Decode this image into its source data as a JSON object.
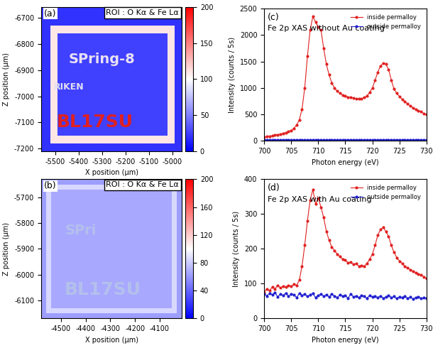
{
  "chart_data": [
    {
      "type": "heatmap",
      "panel": "(a)",
      "roi_label": "ROI : O Kα & Fe Lα",
      "xlabel": "X position (µm)",
      "ylabel": "Z position (µm)",
      "xlim": [
        -5560,
        -4960
      ],
      "xticks": [
        -5500,
        -5400,
        -5300,
        -5200,
        -5100,
        -5000
      ],
      "ylim": [
        -7210,
        -6660
      ],
      "yticks": [
        -7200,
        -7100,
        -7000,
        -6900,
        -6800,
        -6700
      ],
      "x_edges": [
        -5560,
        -5520,
        -5490,
        -5020,
        -4990,
        -4960
      ],
      "z_edges": [
        -7210,
        -7180,
        -7150,
        -6760,
        -6730,
        -6660
      ],
      "cells": [
        [
          20,
          20,
          20,
          20,
          20
        ],
        [
          20,
          110,
          110,
          110,
          20
        ],
        [
          20,
          110,
          25,
          110,
          20
        ],
        [
          20,
          110,
          110,
          110,
          20
        ],
        [
          20,
          20,
          20,
          20,
          20
        ]
      ],
      "color_range": [
        0,
        200
      ],
      "color_ticks": [
        0,
        50,
        100,
        150,
        200
      ],
      "annotations": [
        {
          "text": "SPring-8",
          "x": -5300,
          "y": -6860,
          "color": "#e8e0f4",
          "size": 14
        },
        {
          "text": "RIKEN",
          "x": -5440,
          "y": -6965,
          "color": "#e0e0f4",
          "size": 9
        },
        {
          "text": "BL17SU",
          "x": -5330,
          "y": -7100,
          "color": "#e02020",
          "size": 18
        }
      ]
    },
    {
      "type": "heatmap",
      "panel": "(b)",
      "roi_label": "ROI : O Kα & Fe Lα",
      "xlabel": "X position (µm)",
      "ylabel": "Z position (µm)",
      "xlim": [
        -4580,
        -4010
      ],
      "xticks": [
        -4500,
        -4400,
        -4300,
        -4200,
        -4100
      ],
      "ylim": [
        -6170,
        -5630
      ],
      "yticks": [
        -6100,
        -6000,
        -5900,
        -5800,
        -5700
      ],
      "x_edges": [
        -4580,
        -4560,
        -4540,
        -4050,
        -4030,
        -4010
      ],
      "z_edges": [
        -6170,
        -6150,
        -6130,
        -5670,
        -5650,
        -5630
      ],
      "cells": [
        [
          62,
          62,
          62,
          62,
          62
        ],
        [
          62,
          85,
          85,
          85,
          62
        ],
        [
          62,
          85,
          66,
          85,
          62
        ],
        [
          62,
          85,
          85,
          85,
          62
        ],
        [
          62,
          62,
          62,
          62,
          62
        ]
      ],
      "color_range": [
        0,
        200
      ],
      "color_ticks": [
        0,
        40,
        80,
        120,
        160,
        200
      ],
      "annotations": [
        {
          "text": "SPri",
          "x": -4420,
          "y": -5830,
          "color": "#b4c0ec",
          "size": 14
        },
        {
          "text": "BL17SU",
          "x": -4330,
          "y": -6060,
          "color": "#b4c0ec",
          "size": 18
        }
      ]
    },
    {
      "type": "line",
      "panel": "(c)",
      "title": "Fe 2p XAS without Au coating",
      "xlabel": "Photon energy (eV)",
      "ylabel": "Intensity (counts / 5s)",
      "xlim": [
        700,
        730
      ],
      "xticks": [
        700,
        705,
        710,
        715,
        720,
        725,
        730
      ],
      "ylim": [
        0,
        2500
      ],
      "yticks": [
        0,
        500,
        1000,
        1500,
        2000,
        2500
      ],
      "legend": "upper right",
      "x": [
        700,
        700.5,
        701,
        701.5,
        702,
        702.5,
        703,
        703.5,
        704,
        704.5,
        705,
        705.5,
        706,
        706.5,
        707,
        707.5,
        708,
        708.5,
        709,
        709.5,
        710,
        710.5,
        711,
        711.5,
        712,
        712.5,
        713,
        713.5,
        714,
        714.5,
        715,
        715.5,
        716,
        716.5,
        717,
        717.5,
        718,
        718.5,
        719,
        719.5,
        720,
        720.5,
        721,
        721.5,
        722,
        722.5,
        723,
        723.5,
        724,
        724.5,
        725,
        725.5,
        726,
        726.5,
        727,
        727.5,
        728,
        728.5,
        729,
        729.5,
        730
      ],
      "series": [
        {
          "name": "inside permalloy",
          "color": "#e02020",
          "marker": "o",
          "line_style": "solid",
          "values": [
            70,
            80,
            90,
            100,
            110,
            120,
            130,
            145,
            160,
            180,
            200,
            240,
            300,
            400,
            600,
            1000,
            1600,
            2100,
            2350,
            2250,
            2150,
            2100,
            1750,
            1450,
            1250,
            1100,
            1000,
            940,
            900,
            870,
            850,
            830,
            820,
            810,
            800,
            800,
            800,
            820,
            850,
            920,
            1000,
            1150,
            1300,
            1420,
            1470,
            1450,
            1350,
            1150,
            980,
            900,
            840,
            790,
            740,
            700,
            660,
            630,
            600,
            570,
            550,
            520,
            500
          ]
        },
        {
          "name": "outside permalloy",
          "color": "#1f1fd0",
          "marker": "o",
          "line_style": "solid",
          "values": [
            20,
            21,
            20,
            22,
            21,
            20,
            21,
            22,
            20,
            21,
            20,
            21,
            20,
            22,
            21,
            20,
            21,
            22,
            20,
            21,
            20,
            21,
            20,
            22,
            21,
            20,
            21,
            22,
            20,
            21,
            20,
            21,
            20,
            22,
            21,
            20,
            21,
            22,
            20,
            21,
            20,
            21,
            20,
            22,
            21,
            20,
            21,
            22,
            20,
            21,
            20,
            21,
            20,
            22,
            21,
            20,
            21,
            22,
            20,
            21,
            20
          ]
        }
      ]
    },
    {
      "type": "line",
      "panel": "(d)",
      "title": "Fe 2p XAS with Au coating",
      "xlabel": "Photon energy (eV)",
      "ylabel": "Intensity (counts / 5s)",
      "xlim": [
        700,
        730
      ],
      "xticks": [
        700,
        705,
        710,
        715,
        720,
        725,
        730
      ],
      "ylim": [
        0,
        400
      ],
      "yticks": [
        0,
        100,
        200,
        300,
        400
      ],
      "legend": "upper right",
      "x": [
        700,
        700.5,
        701,
        701.5,
        702,
        702.5,
        703,
        703.5,
        704,
        704.5,
        705,
        705.5,
        706,
        706.5,
        707,
        707.5,
        708,
        708.5,
        709,
        709.5,
        710,
        710.5,
        711,
        711.5,
        712,
        712.5,
        713,
        713.5,
        714,
        714.5,
        715,
        715.5,
        716,
        716.5,
        717,
        717.5,
        718,
        718.5,
        719,
        719.5,
        720,
        720.5,
        721,
        721.5,
        722,
        722.5,
        723,
        723.5,
        724,
        724.5,
        725,
        725.5,
        726,
        726.5,
        727,
        727.5,
        728,
        728.5,
        729,
        729.5,
        730
      ],
      "series": [
        {
          "name": "inside permalloy",
          "color": "#e02020",
          "marker": "o",
          "line_style": "solid",
          "values": [
            75,
            85,
            80,
            90,
            85,
            95,
            88,
            92,
            90,
            95,
            92,
            98,
            95,
            110,
            150,
            210,
            280,
            340,
            370,
            330,
            345,
            320,
            290,
            250,
            225,
            205,
            195,
            185,
            178,
            170,
            168,
            160,
            162,
            155,
            158,
            150,
            152,
            150,
            158,
            170,
            185,
            210,
            240,
            255,
            262,
            250,
            235,
            210,
            190,
            175,
            165,
            158,
            150,
            145,
            140,
            135,
            132,
            128,
            125,
            120,
            115
          ]
        },
        {
          "name": "outside permalloy",
          "color": "#1f1fd0",
          "marker": "o",
          "line_style": "solid",
          "values": [
            70,
            65,
            72,
            68,
            75,
            62,
            70,
            66,
            73,
            64,
            70,
            68,
            60,
            72,
            66,
            70,
            63,
            68,
            72,
            60,
            66,
            70,
            64,
            68,
            62,
            70,
            65,
            60,
            68,
            64,
            66,
            58,
            70,
            62,
            65,
            60,
            67,
            63,
            58,
            66,
            62,
            64,
            60,
            65,
            58,
            62,
            66,
            60,
            63,
            57,
            62,
            60,
            64,
            58,
            61,
            56,
            60,
            62,
            57,
            60,
            58
          ]
        }
      ]
    }
  ]
}
